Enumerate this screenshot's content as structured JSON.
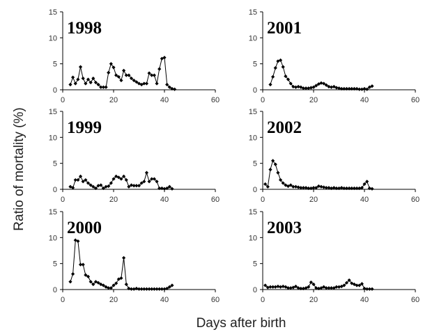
{
  "figure": {
    "ylabel": "Ratio of mortality (%)",
    "xlabel": "Days after birth"
  },
  "chart_data": [
    {
      "type": "line",
      "title": "1998",
      "xlim": [
        0,
        60
      ],
      "ylim": [
        0,
        15
      ],
      "xticks": [
        0,
        20,
        40,
        60
      ],
      "yticks": [
        0,
        5,
        10,
        15
      ],
      "series": [
        {
          "x": [
            3,
            4,
            5,
            6,
            7,
            8,
            9,
            10,
            11,
            12,
            13,
            14,
            15,
            16,
            17,
            18,
            19,
            20,
            21,
            22,
            23,
            24,
            25,
            26,
            27,
            28,
            29,
            30,
            31,
            32,
            33,
            34,
            35,
            36,
            37,
            38,
            39,
            40,
            41,
            42,
            43,
            44
          ],
          "y": [
            1.0,
            2.4,
            1.2,
            2.0,
            4.4,
            2.2,
            1.2,
            2.0,
            1.4,
            2.2,
            1.4,
            1.0,
            0.5,
            0.5,
            0.5,
            3.3,
            5.0,
            4.3,
            2.8,
            2.5,
            1.8,
            3.7,
            2.8,
            2.8,
            2.2,
            1.8,
            1.5,
            1.2,
            1.0,
            1.2,
            1.2,
            3.2,
            2.8,
            2.8,
            1.2,
            4.0,
            6.0,
            6.2,
            1.0,
            0.5,
            0.2,
            0.1
          ]
        }
      ]
    },
    {
      "type": "line",
      "title": "2001",
      "xlim": [
        0,
        60
      ],
      "ylim": [
        0,
        15
      ],
      "xticks": [
        0,
        20,
        40,
        60
      ],
      "yticks": [
        0,
        5,
        10,
        15
      ],
      "series": [
        {
          "x": [
            3,
            4,
            5,
            6,
            7,
            8,
            9,
            10,
            11,
            12,
            13,
            14,
            15,
            16,
            17,
            18,
            19,
            20,
            21,
            22,
            23,
            24,
            25,
            26,
            27,
            28,
            29,
            30,
            31,
            32,
            33,
            34,
            35,
            36,
            37,
            38,
            39,
            40,
            41,
            42,
            43
          ],
          "y": [
            1.0,
            2.5,
            4.2,
            5.5,
            5.7,
            4.4,
            2.6,
            2.0,
            1.2,
            0.6,
            0.5,
            0.6,
            0.5,
            0.3,
            0.3,
            0.3,
            0.4,
            0.5,
            0.8,
            1.1,
            1.3,
            1.2,
            0.9,
            0.6,
            0.5,
            0.6,
            0.4,
            0.3,
            0.2,
            0.2,
            0.2,
            0.2,
            0.2,
            0.2,
            0.2,
            0.1,
            0.1,
            0.2,
            0.1,
            0.5,
            0.7
          ]
        }
      ]
    },
    {
      "type": "line",
      "title": "1999",
      "xlim": [
        0,
        60
      ],
      "ylim": [
        0,
        15
      ],
      "xticks": [
        0,
        20,
        40,
        60
      ],
      "yticks": [
        0,
        5,
        10,
        15
      ],
      "series": [
        {
          "x": [
            3,
            4,
            5,
            6,
            7,
            8,
            9,
            10,
            11,
            12,
            13,
            14,
            15,
            16,
            17,
            18,
            19,
            20,
            21,
            22,
            23,
            24,
            25,
            26,
            27,
            28,
            29,
            30,
            31,
            32,
            33,
            34,
            35,
            36,
            37,
            38,
            39,
            40,
            41,
            42,
            43
          ],
          "y": [
            0.5,
            0.3,
            1.8,
            1.8,
            2.5,
            1.5,
            1.8,
            1.2,
            0.8,
            0.5,
            0.2,
            0.7,
            0.8,
            0.2,
            0.5,
            0.6,
            1.2,
            2.0,
            2.5,
            2.3,
            2.0,
            2.5,
            1.8,
            0.5,
            0.8,
            0.7,
            0.7,
            0.7,
            1.2,
            1.5,
            3.2,
            1.5,
            2.0,
            2.0,
            1.5,
            0.2,
            0.2,
            0.1,
            0.2,
            0.5,
            0.1
          ]
        }
      ]
    },
    {
      "type": "line",
      "title": "2002",
      "xlim": [
        0,
        60
      ],
      "ylim": [
        0,
        15
      ],
      "xticks": [
        0,
        20,
        40,
        60
      ],
      "yticks": [
        0,
        5,
        10,
        15
      ],
      "series": [
        {
          "x": [
            1,
            2,
            3,
            4,
            5,
            6,
            7,
            8,
            9,
            10,
            11,
            12,
            13,
            14,
            15,
            16,
            17,
            18,
            19,
            20,
            21,
            22,
            23,
            24,
            25,
            26,
            27,
            28,
            29,
            30,
            31,
            32,
            33,
            34,
            35,
            36,
            37,
            38,
            39,
            40,
            41,
            42,
            43
          ],
          "y": [
            1.0,
            0.5,
            3.8,
            5.5,
            4.8,
            3.2,
            1.8,
            1.2,
            0.8,
            0.6,
            0.8,
            0.5,
            0.5,
            0.4,
            0.3,
            0.3,
            0.3,
            0.2,
            0.2,
            0.3,
            0.3,
            0.6,
            0.5,
            0.4,
            0.3,
            0.3,
            0.2,
            0.3,
            0.2,
            0.2,
            0.3,
            0.2,
            0.2,
            0.2,
            0.2,
            0.2,
            0.2,
            0.2,
            0.3,
            1.0,
            1.5,
            0.2,
            0.1
          ]
        }
      ]
    },
    {
      "type": "line",
      "title": "2000",
      "xlim": [
        0,
        60
      ],
      "ylim": [
        0,
        15
      ],
      "xticks": [
        0,
        20,
        40,
        60
      ],
      "yticks": [
        0,
        5,
        10,
        15
      ],
      "series": [
        {
          "x": [
            3,
            4,
            5,
            6,
            7,
            8,
            9,
            10,
            11,
            12,
            13,
            14,
            15,
            16,
            17,
            18,
            19,
            20,
            21,
            22,
            23,
            24,
            25,
            26,
            27,
            28,
            29,
            30,
            31,
            32,
            33,
            34,
            35,
            36,
            37,
            38,
            39,
            40,
            41,
            42,
            43
          ],
          "y": [
            1.5,
            3.0,
            9.5,
            9.3,
            4.8,
            4.8,
            2.8,
            2.5,
            1.5,
            1.0,
            1.5,
            1.3,
            1.0,
            0.8,
            0.5,
            0.3,
            0.3,
            0.8,
            1.2,
            2.0,
            2.2,
            6.1,
            1.0,
            0.2,
            0.1,
            0.1,
            0.2,
            0.1,
            0.1,
            0.1,
            0.1,
            0.1,
            0.1,
            0.1,
            0.1,
            0.1,
            0.1,
            0.1,
            0.2,
            0.5,
            0.8
          ]
        }
      ]
    },
    {
      "type": "line",
      "title": "2003",
      "xlim": [
        0,
        60
      ],
      "ylim": [
        0,
        15
      ],
      "xticks": [
        0,
        20,
        40,
        60
      ],
      "yticks": [
        0,
        5,
        10,
        15
      ],
      "series": [
        {
          "x": [
            1,
            2,
            3,
            4,
            5,
            6,
            7,
            8,
            9,
            10,
            11,
            12,
            13,
            14,
            15,
            16,
            17,
            18,
            19,
            20,
            21,
            22,
            23,
            24,
            25,
            26,
            27,
            28,
            29,
            30,
            31,
            32,
            33,
            34,
            35,
            36,
            37,
            38,
            39,
            40,
            41,
            42,
            43
          ],
          "y": [
            0.8,
            0.4,
            0.5,
            0.5,
            0.5,
            0.6,
            0.5,
            0.6,
            0.5,
            0.3,
            0.3,
            0.4,
            0.6,
            0.3,
            0.2,
            0.2,
            0.3,
            0.5,
            1.4,
            1.0,
            0.3,
            0.2,
            0.3,
            0.5,
            0.3,
            0.3,
            0.3,
            0.3,
            0.5,
            0.5,
            0.6,
            0.8,
            1.3,
            1.8,
            1.2,
            1.0,
            0.8,
            0.8,
            1.1,
            0.2,
            0.1,
            0.1,
            0.1
          ]
        }
      ]
    }
  ]
}
